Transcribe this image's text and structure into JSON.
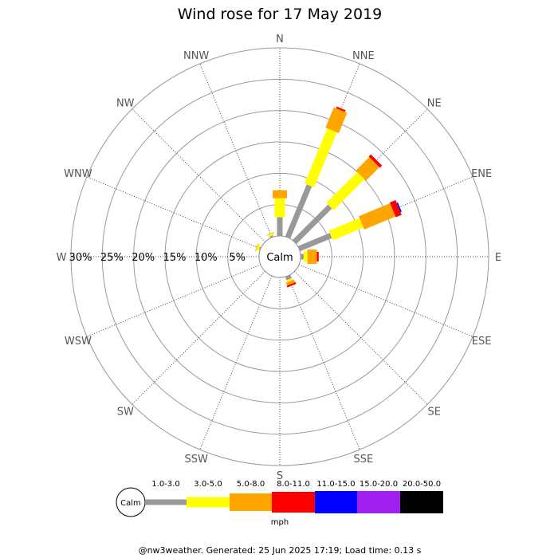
{
  "chart_data": {
    "type": "wind-rose",
    "title": "Wind rose for 17 May 2019",
    "directions": [
      "N",
      "NNE",
      "NE",
      "ENE",
      "E",
      "ESE",
      "SE",
      "SSE",
      "S",
      "SSW",
      "SW",
      "WSW",
      "W",
      "WNW",
      "NW",
      "NNW"
    ],
    "radial_ticks": [
      "30%",
      "25%",
      "20%",
      "15%",
      "10%",
      "5%"
    ],
    "radial_max_pct": 30,
    "grid": true,
    "calm_label": "Calm",
    "speed_bins": [
      "1.0-3.0",
      "3.0-5.0",
      "5.0-8.0",
      "8.0-11.0",
      "11.0-15.0",
      "15.0-20.0",
      "20.0-50.0"
    ],
    "bin_colors": [
      "#999999",
      "#ffff00",
      "#ffa500",
      "#ff0000",
      "#0000ff",
      "#a020f0",
      "#000000"
    ],
    "series": [
      {
        "direction": "N",
        "cumulative_pct": [
          3.0,
          6.0,
          7.3,
          7.3,
          7.3,
          7.3,
          7.3
        ]
      },
      {
        "direction": "NNE",
        "cumulative_pct": [
          9.0,
          18.5,
          22.0,
          22.3,
          22.3,
          22.3,
          22.3
        ]
      },
      {
        "direction": "NE",
        "cumulative_pct": [
          8.0,
          15.0,
          18.0,
          18.5,
          18.5,
          18.5,
          18.5
        ]
      },
      {
        "direction": "ENE",
        "cumulative_pct": [
          5.5,
          10.8,
          16.2,
          17.2,
          17.4,
          17.4,
          17.4
        ]
      },
      {
        "direction": "E",
        "cumulative_pct": [
          0.5,
          1.1,
          2.6,
          2.9,
          2.9,
          2.9,
          2.9
        ]
      },
      {
        "direction": "SSE",
        "cumulative_pct": [
          0.6,
          0.9,
          1.4,
          1.7,
          1.7,
          1.7,
          1.7
        ]
      },
      {
        "direction": "WNW",
        "cumulative_pct": [
          0.2,
          0.6,
          0.7,
          0.7,
          0.7,
          0.7,
          0.7
        ]
      },
      {
        "direction": "NNW",
        "cumulative_pct": [
          0.3,
          0.6,
          0.7,
          0.7,
          0.7,
          0.7,
          0.7
        ]
      }
    ],
    "unit": "mph"
  },
  "footer": "@nw3weather. Generated: 25 Jun 2025 17:19; Load time: 0.13 s"
}
